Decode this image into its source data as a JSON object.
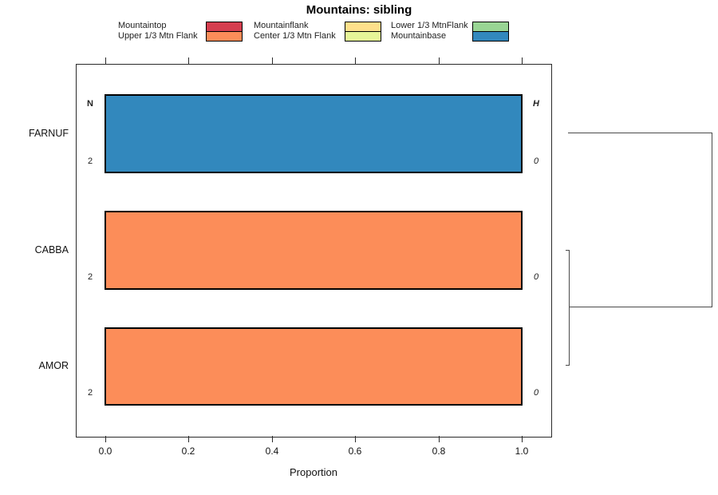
{
  "chart_data": {
    "type": "bar",
    "orientation": "horizontal",
    "stacked": true,
    "title": "Mountains: sibling",
    "xlabel": "Proportion",
    "xlim": [
      0,
      1
    ],
    "xticks": [
      0.0,
      0.2,
      0.4,
      0.6,
      0.8,
      1.0
    ],
    "xtick_labels": [
      "0.0",
      "0.2",
      "0.4",
      "0.6",
      "0.8",
      "1.0"
    ],
    "grid": false,
    "legend_position": "top",
    "legend": {
      "items": [
        {
          "label": "Mountaintop",
          "color": "#d53e4f"
        },
        {
          "label": "Upper 1/3 Mtn Flank",
          "color": "#fc8d59"
        },
        {
          "label": "Mountainflank",
          "color": "#fee08b"
        },
        {
          "label": "Center 1/3 Mtn Flank",
          "color": "#e6f598"
        },
        {
          "label": "Lower 1/3 MtnFlank",
          "color": "#99d594"
        },
        {
          "label": "Mountainbase",
          "color": "#3288bd"
        }
      ]
    },
    "annotations": {
      "left_header": "N",
      "right_header": "H"
    },
    "categories": [
      "FARNUF",
      "CABBA",
      "AMOR"
    ],
    "rows": [
      {
        "label": "FARNUF",
        "n": "2",
        "h": "0",
        "segment": "Mountainbase",
        "proportion": 1.0,
        "color": "#3288bd"
      },
      {
        "label": "CABBA",
        "n": "2",
        "h": "0",
        "segment": "Upper 1/3 Mtn Flank",
        "proportion": 1.0,
        "color": "#fc8d59"
      },
      {
        "label": "AMOR",
        "n": "2",
        "h": "0",
        "segment": "Upper 1/3 Mtn Flank",
        "proportion": 1.0,
        "color": "#fc8d59"
      }
    ],
    "dendrogram": {
      "leaves": [
        "FARNUF",
        "CABBA",
        "AMOR"
      ],
      "topology": "(FARNUF,(CABBA,AMOR))",
      "joins": [
        {
          "members": [
            "CABBA",
            "AMOR"
          ],
          "relative_height": 0.02
        },
        {
          "members": [
            "FARNUF",
            "(CABBA,AMOR)"
          ],
          "relative_height": 1.0
        }
      ]
    }
  }
}
